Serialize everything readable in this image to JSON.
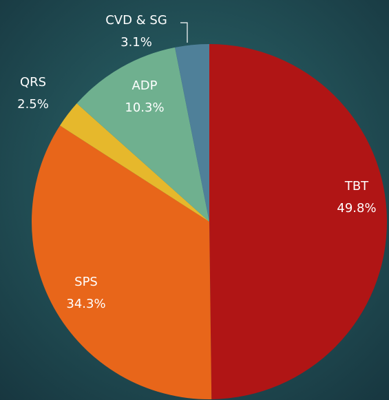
{
  "chart_data": {
    "type": "pie",
    "categories": [
      "TBT",
      "SPS",
      "QRS",
      "ADP",
      "CVD & SG"
    ],
    "values": [
      49.8,
      34.3,
      2.5,
      10.3,
      3.1
    ],
    "value_labels": [
      "49.8%",
      "34.3%",
      "2.5%",
      "10.3%",
      "3.1%"
    ],
    "colors": [
      "#b01515",
      "#e8661a",
      "#e6b82c",
      "#6fb08f",
      "#4f8099"
    ]
  }
}
